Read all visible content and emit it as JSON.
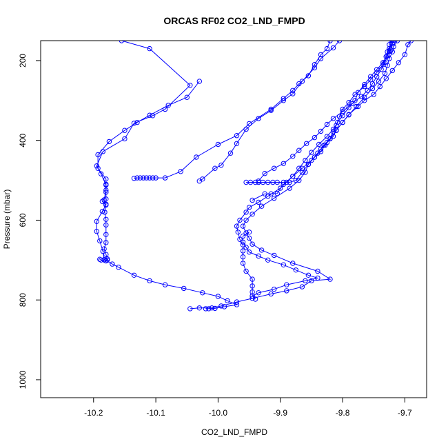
{
  "chart_data": {
    "type": "line",
    "title": "ORCAS RF02 CO2_LND_FMPD",
    "xlabel": "CO2_LND_FMPD",
    "ylabel": "Pressure (mbar)",
    "xlim": [
      -10.285,
      -9.665
    ],
    "ylim": [
      1045,
      150
    ],
    "y_reversed": true,
    "x_ticks": [
      -10.2,
      -10.1,
      -10.0,
      -9.9,
      -9.8,
      -9.7
    ],
    "x_tick_labels": [
      "-10.2",
      "-10.1",
      "-10.0",
      "-9.9",
      "-9.8",
      "-9.7"
    ],
    "y_ticks": [
      200,
      400,
      600,
      800,
      1000
    ],
    "y_tick_labels": [
      "200",
      "400",
      "600",
      "800",
      "1000"
    ],
    "grid": false,
    "line_color": "#0000ff",
    "marker": "open-circle",
    "series": [
      {
        "points": [
          [
            -10.155,
            150
          ],
          [
            -10.11,
            170
          ],
          [
            -10.045,
            262
          ],
          [
            -10.085,
            322
          ],
          [
            -10.105,
            338
          ],
          [
            -10.135,
            357
          ],
          [
            -10.15,
            396
          ],
          [
            -10.185,
            428
          ],
          [
            -10.195,
            464
          ],
          [
            -10.188,
            484
          ],
          [
            -10.18,
            512
          ],
          [
            -10.18,
            525
          ],
          [
            -10.183,
            549
          ],
          [
            -10.186,
            553
          ],
          [
            -10.18,
            562
          ],
          [
            -10.186,
            578
          ],
          [
            -10.195,
            603
          ],
          [
            -10.195,
            628
          ],
          [
            -10.19,
            652
          ],
          [
            -10.185,
            678
          ],
          [
            -10.183,
            699
          ],
          [
            -10.17,
            710
          ],
          [
            -10.16,
            718
          ],
          [
            -10.135,
            738
          ],
          [
            -10.11,
            752
          ],
          [
            -10.085,
            762
          ],
          [
            -10.055,
            771
          ],
          [
            -10.025,
            782
          ],
          [
            -10.0,
            791
          ],
          [
            -9.985,
            802
          ],
          [
            -9.97,
            812
          ],
          [
            -9.99,
            817
          ],
          [
            -10.005,
            821
          ],
          [
            -10.015,
            822
          ],
          [
            -10.02,
            822
          ]
        ]
      },
      {
        "points": [
          [
            -10.03,
            252
          ],
          [
            -10.05,
            292
          ],
          [
            -10.08,
            312
          ],
          [
            -10.11,
            337
          ],
          [
            -10.13,
            355
          ],
          [
            -10.15,
            375
          ],
          [
            -10.175,
            403
          ],
          [
            -10.193,
            436
          ],
          [
            -10.193,
            470
          ],
          [
            -10.18,
            497
          ],
          [
            -10.18,
            510
          ],
          [
            -10.18,
            530
          ],
          [
            -10.18,
            547
          ],
          [
            -10.18,
            560
          ],
          [
            -10.182,
            580
          ],
          [
            -10.18,
            598
          ],
          [
            -10.18,
            612
          ],
          [
            -10.18,
            636
          ],
          [
            -10.18,
            656
          ],
          [
            -10.183,
            672
          ],
          [
            -10.18,
            686
          ],
          [
            -10.178,
            697
          ],
          [
            -10.178,
            700
          ],
          [
            -10.18,
            702
          ],
          [
            -10.183,
            700
          ],
          [
            -10.188,
            700
          ],
          [
            -10.19,
            698
          ]
        ]
      },
      {
        "points": [
          [
            -10.135,
            495
          ],
          [
            -10.13,
            494
          ],
          [
            -10.125,
            494
          ],
          [
            -10.12,
            494
          ],
          [
            -10.115,
            494
          ],
          [
            -10.11,
            494
          ],
          [
            -10.105,
            494
          ],
          [
            -10.1,
            494
          ],
          [
            -10.085,
            494
          ],
          [
            -10.06,
            478
          ],
          [
            -10.035,
            442
          ],
          [
            -10.0,
            410
          ],
          [
            -9.97,
            388
          ],
          [
            -9.95,
            358
          ],
          [
            -9.915,
            322
          ],
          [
            -9.895,
            295
          ],
          [
            -9.88,
            275
          ],
          [
            -9.87,
            258
          ],
          [
            -9.855,
            238
          ],
          [
            -9.845,
            210
          ],
          [
            -9.835,
            185
          ],
          [
            -9.825,
            170
          ],
          [
            -9.82,
            150
          ]
        ]
      },
      {
        "points": [
          [
            -10.03,
            502
          ],
          [
            -10.025,
            497
          ],
          [
            -10.005,
            470
          ],
          [
            -9.995,
            462
          ],
          [
            -9.98,
            432
          ],
          [
            -9.97,
            408
          ],
          [
            -9.955,
            372
          ],
          [
            -9.935,
            345
          ],
          [
            -9.915,
            325
          ],
          [
            -9.895,
            300
          ],
          [
            -9.88,
            283
          ],
          [
            -9.865,
            252
          ],
          [
            -9.845,
            218
          ],
          [
            -9.835,
            195
          ],
          [
            -9.815,
            168
          ],
          [
            -9.805,
            150
          ]
        ]
      },
      {
        "points": [
          [
            -10.045,
            822
          ],
          [
            -10.03,
            820
          ],
          [
            -10.01,
            820
          ],
          [
            -9.995,
            815
          ],
          [
            -9.97,
            805
          ],
          [
            -9.945,
            796
          ],
          [
            -9.915,
            785
          ],
          [
            -9.89,
            777
          ],
          [
            -9.865,
            767
          ],
          [
            -9.85,
            752
          ],
          [
            -9.82,
            748
          ],
          [
            -9.84,
            728
          ],
          [
            -9.88,
            708
          ],
          [
            -9.91,
            688
          ],
          [
            -9.93,
            675
          ],
          [
            -9.945,
            660
          ],
          [
            -9.95,
            645
          ],
          [
            -9.955,
            632
          ],
          [
            -9.96,
            615
          ],
          [
            -9.955,
            600
          ],
          [
            -9.945,
            585
          ],
          [
            -9.93,
            565
          ],
          [
            -9.91,
            545
          ],
          [
            -9.885,
            520
          ],
          [
            -9.87,
            500
          ],
          [
            -9.86,
            480
          ],
          [
            -9.855,
            460
          ],
          [
            -9.845,
            442
          ],
          [
            -9.835,
            422
          ],
          [
            -9.825,
            405
          ],
          [
            -9.815,
            390
          ],
          [
            -9.81,
            374
          ],
          [
            -9.8,
            355
          ],
          [
            -9.79,
            335
          ],
          [
            -9.775,
            315
          ],
          [
            -9.765,
            300
          ],
          [
            -9.75,
            285
          ],
          [
            -9.74,
            265
          ],
          [
            -9.73,
            245
          ],
          [
            -9.72,
            225
          ],
          [
            -9.71,
            205
          ],
          [
            -9.7,
            185
          ],
          [
            -9.695,
            160
          ],
          [
            -9.69,
            150
          ]
        ]
      },
      {
        "points": [
          [
            -9.94,
            798
          ],
          [
            -9.945,
            790
          ],
          [
            -9.945,
            780
          ],
          [
            -9.945,
            765
          ],
          [
            -9.945,
            748
          ],
          [
            -9.955,
            728
          ],
          [
            -9.96,
            708
          ],
          [
            -9.96,
            692
          ],
          [
            -9.96,
            677
          ],
          [
            -9.96,
            662
          ],
          [
            -9.965,
            648
          ],
          [
            -9.968,
            630
          ],
          [
            -9.97,
            615
          ],
          [
            -9.965,
            600
          ],
          [
            -9.955,
            580
          ],
          [
            -9.95,
            568
          ],
          [
            -9.935,
            555
          ],
          [
            -9.92,
            540
          ],
          [
            -9.9,
            520
          ],
          [
            -9.89,
            505
          ],
          [
            -9.88,
            490
          ],
          [
            -9.865,
            470
          ],
          [
            -9.85,
            450
          ],
          [
            -9.84,
            432
          ],
          [
            -9.83,
            412
          ],
          [
            -9.82,
            395
          ],
          [
            -9.815,
            378
          ],
          [
            -9.81,
            362
          ],
          [
            -9.805,
            340
          ],
          [
            -9.8,
            322
          ],
          [
            -9.79,
            305
          ],
          [
            -9.78,
            285
          ],
          [
            -9.765,
            265
          ],
          [
            -9.755,
            248
          ],
          [
            -9.745,
            230
          ],
          [
            -9.735,
            210
          ],
          [
            -9.73,
            190
          ],
          [
            -9.725,
            170
          ],
          [
            -9.72,
            150
          ]
        ]
      },
      {
        "points": [
          [
            -9.955,
            505
          ],
          [
            -9.948,
            505
          ],
          [
            -9.94,
            505
          ],
          [
            -9.935,
            505
          ],
          [
            -9.928,
            505
          ],
          [
            -9.92,
            505
          ],
          [
            -9.912,
            505
          ],
          [
            -9.905,
            505
          ],
          [
            -9.895,
            505
          ],
          [
            -9.885,
            505
          ],
          [
            -9.875,
            500
          ],
          [
            -9.865,
            480
          ],
          [
            -9.855,
            460
          ],
          [
            -9.845,
            442
          ],
          [
            -9.835,
            428
          ],
          [
            -9.828,
            412
          ],
          [
            -9.82,
            396
          ],
          [
            -9.81,
            375
          ],
          [
            -9.8,
            355
          ],
          [
            -9.79,
            336
          ],
          [
            -9.778,
            315
          ],
          [
            -9.765,
            292
          ],
          [
            -9.752,
            270
          ],
          [
            -9.742,
            252
          ],
          [
            -9.732,
            232
          ],
          [
            -9.728,
            212
          ],
          [
            -9.725,
            195
          ],
          [
            -9.72,
            178
          ],
          [
            -9.718,
            165
          ],
          [
            -9.712,
            150
          ]
        ]
      },
      {
        "points": [
          [
            -9.945,
            550
          ],
          [
            -9.925,
            534
          ],
          [
            -9.915,
            534
          ],
          [
            -9.905,
            533
          ],
          [
            -9.895,
            510
          ],
          [
            -9.88,
            490
          ],
          [
            -9.87,
            470
          ],
          [
            -9.86,
            450
          ],
          [
            -9.85,
            430
          ],
          [
            -9.838,
            410
          ],
          [
            -9.825,
            390
          ],
          [
            -9.815,
            372
          ],
          [
            -9.808,
            355
          ],
          [
            -9.8,
            338
          ],
          [
            -9.79,
            318
          ],
          [
            -9.78,
            300
          ],
          [
            -9.775,
            280
          ],
          [
            -9.765,
            260
          ],
          [
            -9.755,
            240
          ],
          [
            -9.745,
            222
          ],
          [
            -9.735,
            205
          ],
          [
            -9.73,
            190
          ],
          [
            -9.728,
            178
          ],
          [
            -9.725,
            175
          ],
          [
            -9.722,
            173
          ],
          [
            -9.72,
            158
          ],
          [
            -9.718,
            150
          ]
        ]
      },
      {
        "points": [
          [
            -9.95,
            630
          ],
          [
            -9.96,
            640
          ],
          [
            -9.96,
            655
          ],
          [
            -9.955,
            668
          ],
          [
            -9.95,
            680
          ],
          [
            -9.935,
            690
          ],
          [
            -9.92,
            700
          ],
          [
            -9.895,
            712
          ],
          [
            -9.875,
            725
          ],
          [
            -9.855,
            738
          ],
          [
            -9.84,
            745
          ],
          [
            -9.86,
            752
          ],
          [
            -9.89,
            762
          ],
          [
            -9.91,
            773
          ],
          [
            -9.935,
            782
          ],
          [
            -9.945,
            790
          ]
        ]
      },
      {
        "points": [
          [
            -9.935,
            502
          ],
          [
            -9.925,
            483
          ],
          [
            -9.91,
            470
          ],
          [
            -9.895,
            458
          ],
          [
            -9.88,
            440
          ],
          [
            -9.87,
            425
          ],
          [
            -9.858,
            408
          ],
          [
            -9.845,
            393
          ],
          [
            -9.835,
            377
          ],
          [
            -9.825,
            360
          ],
          [
            -9.815,
            345
          ],
          [
            -9.8,
            328
          ],
          [
            -9.785,
            308
          ],
          [
            -9.77,
            290
          ],
          [
            -9.76,
            275
          ],
          [
            -9.752,
            258
          ],
          [
            -9.745,
            240
          ],
          [
            -9.738,
            222
          ],
          [
            -9.732,
            205
          ],
          [
            -9.728,
            188
          ],
          [
            -9.725,
            177
          ],
          [
            -9.725,
            160
          ],
          [
            -9.722,
            150
          ]
        ]
      }
    ]
  }
}
